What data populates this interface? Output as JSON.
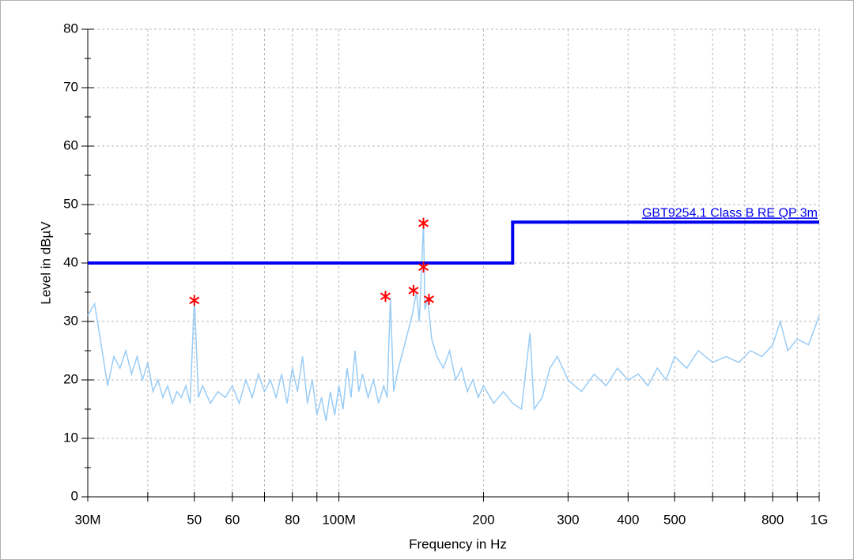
{
  "chart_data": {
    "type": "line",
    "x_label": "Frequency in Hz",
    "y_label": "Level in dBµV",
    "xscale": "log",
    "xlim": [
      30000000,
      1000000000
    ],
    "ylim": [
      0,
      80
    ],
    "grid": true,
    "xticks": [
      {
        "value": 30000000,
        "label": "30M"
      },
      {
        "value": 50000000,
        "label": "50"
      },
      {
        "value": 60000000,
        "label": "60"
      },
      {
        "value": 80000000,
        "label": "80"
      },
      {
        "value": 100000000,
        "label": "100M"
      },
      {
        "value": 200000000,
        "label": "200"
      },
      {
        "value": 300000000,
        "label": "300"
      },
      {
        "value": 400000000,
        "label": "400"
      },
      {
        "value": 500000000,
        "label": "500"
      },
      {
        "value": 800000000,
        "label": "800"
      },
      {
        "value": 1000000000,
        "label": "1G"
      }
    ],
    "xminorticks": [
      40000000,
      70000000,
      90000000,
      600000000,
      700000000,
      900000000
    ],
    "yticks": [
      0,
      10,
      20,
      30,
      40,
      50,
      60,
      70,
      80
    ],
    "yminorticks": [
      5,
      15,
      25,
      35,
      45,
      55,
      65,
      75
    ],
    "trace": {
      "color": "#99ccf5",
      "x": [
        30000000,
        31000000,
        32000000,
        33000000,
        34000000,
        35000000,
        36000000,
        37000000,
        38000000,
        39000000,
        40000000,
        41000000,
        42000000,
        43000000,
        44000000,
        45000000,
        46000000,
        47000000,
        48000000,
        49000000,
        50000000,
        51000000,
        52000000,
        54000000,
        56000000,
        58000000,
        60000000,
        62000000,
        64000000,
        66000000,
        68000000,
        70000000,
        72000000,
        74000000,
        76000000,
        78000000,
        80000000,
        82000000,
        84000000,
        86000000,
        88000000,
        90000000,
        92000000,
        94000000,
        96000000,
        98000000,
        100000000,
        102000000,
        104000000,
        106000000,
        108000000,
        110000000,
        112000000,
        115000000,
        118000000,
        121000000,
        124000000,
        126000000,
        128000000,
        130000000,
        133000000,
        136000000,
        139000000,
        142000000,
        145000000,
        147000000,
        150000000,
        151000000,
        153000000,
        156000000,
        160000000,
        165000000,
        170000000,
        175000000,
        180000000,
        185000000,
        190000000,
        195000000,
        200000000,
        210000000,
        220000000,
        230000000,
        240000000,
        250000000,
        255000000,
        265000000,
        275000000,
        285000000,
        300000000,
        320000000,
        340000000,
        360000000,
        380000000,
        400000000,
        420000000,
        440000000,
        460000000,
        480000000,
        500000000,
        530000000,
        560000000,
        600000000,
        640000000,
        680000000,
        720000000,
        760000000,
        800000000,
        830000000,
        860000000,
        900000000,
        950000000,
        1000000000
      ],
      "values": [
        31,
        33,
        26,
        19,
        24,
        22,
        25,
        21,
        24,
        20,
        23,
        18,
        20,
        17,
        19,
        16,
        18,
        17,
        19,
        16,
        34,
        17,
        19,
        16,
        18,
        17,
        19,
        16,
        20,
        17,
        21,
        18,
        20,
        17,
        21,
        16,
        22,
        18,
        24,
        16,
        20,
        14,
        17,
        13,
        18,
        14,
        19,
        15,
        22,
        17,
        25,
        18,
        21,
        17,
        20,
        16,
        19,
        17,
        34,
        18,
        22,
        25,
        28,
        31,
        35,
        30,
        47,
        32,
        34,
        27,
        24,
        22,
        25,
        20,
        22,
        18,
        20,
        17,
        19,
        16,
        18,
        16,
        15,
        28,
        15,
        17,
        22,
        24,
        20,
        18,
        21,
        19,
        22,
        20,
        21,
        19,
        22,
        20,
        24,
        22,
        25,
        23,
        24,
        23,
        25,
        24,
        26,
        30,
        25,
        27,
        26,
        31
      ]
    },
    "limit": {
      "name": "GBT9254.1 Class B  RE  QP  3m",
      "color": "#0000ee",
      "x": [
        30000000,
        230000000,
        230000000,
        1000000000
      ],
      "values": [
        40,
        40,
        47,
        47
      ]
    },
    "markers": {
      "color": "#ff0000",
      "x": [
        50000000,
        125000000,
        143000000,
        150000000,
        150000000,
        154000000
      ],
      "values": [
        33.6,
        34.3,
        35.3,
        46.8,
        39.3,
        33.8
      ]
    }
  }
}
